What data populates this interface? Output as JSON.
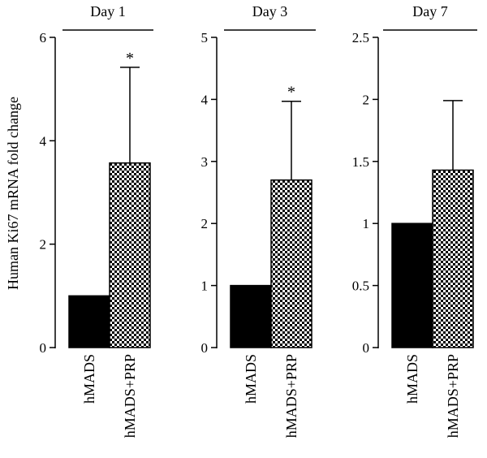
{
  "figure": {
    "ylabel": "Human Ki67 mRNA fold change"
  },
  "chart_data": [
    {
      "type": "bar",
      "title": "Day 1",
      "categories": [
        "hMADS",
        "hMADS+PRP"
      ],
      "values": [
        1.0,
        3.57
      ],
      "errors": [
        null,
        1.85
      ],
      "significance": [
        "",
        "*"
      ],
      "ylim": [
        0,
        6
      ],
      "yticks": [
        "0",
        "2",
        "4",
        "6"
      ],
      "ylabel": "Human Ki67 mRNA fold change",
      "xlabel": ""
    },
    {
      "type": "bar",
      "title": "Day 3",
      "categories": [
        "hMADS",
        "hMADS+PRP"
      ],
      "values": [
        1.0,
        2.7
      ],
      "errors": [
        null,
        1.27
      ],
      "significance": [
        "",
        "*"
      ],
      "ylim": [
        0,
        5
      ],
      "yticks": [
        "0",
        "1",
        "2",
        "3",
        "4",
        "5"
      ],
      "ylabel": "",
      "xlabel": ""
    },
    {
      "type": "bar",
      "title": "Day 7",
      "categories": [
        "hMADS",
        "hMADS+PRP"
      ],
      "values": [
        1.0,
        1.43
      ],
      "errors": [
        null,
        0.56
      ],
      "significance": [
        "",
        ""
      ],
      "ylim": [
        0,
        2.5
      ],
      "yticks": [
        "0",
        "0.5",
        "1",
        "1.5",
        "2",
        "2.5"
      ],
      "ylabel": "",
      "xlabel": ""
    }
  ],
  "style": {
    "bar_fill_control": "#000000",
    "bar_fill_treated": "checkerboard",
    "axis_color": "#000000"
  }
}
